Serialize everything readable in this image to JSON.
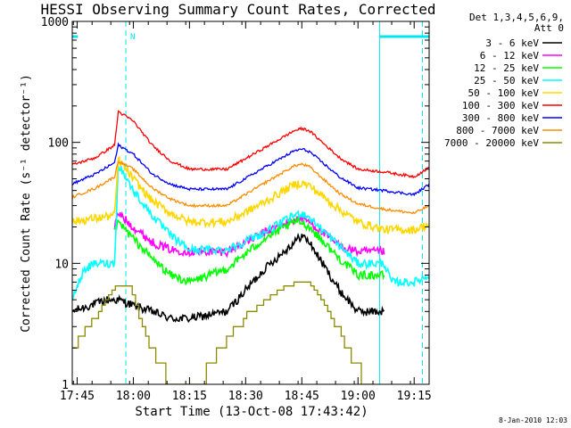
{
  "chart_data": {
    "type": "line",
    "title": "HESSI Observing Summary Count Rates, Corrected",
    "xlabel": "Start Time (13-Oct-08 17:43:42)",
    "ylabel": "Corrected Count Rate (s⁻¹ detector⁻¹)",
    "yscale": "log",
    "ylim": [
      1,
      1000
    ],
    "xlim_minutes_after_1745": [
      -1.3,
      94
    ],
    "x_ticks": [
      {
        "label": "17:45",
        "min": 0
      },
      {
        "label": "18:00",
        "min": 15
      },
      {
        "label": "18:15",
        "min": 30
      },
      {
        "label": "18:30",
        "min": 45
      },
      {
        "label": "18:45",
        "min": 60
      },
      {
        "label": "19:00",
        "min": 75
      },
      {
        "label": "19:15",
        "min": 90
      }
    ],
    "y_ticks": [
      {
        "label": "1",
        "value": 1
      },
      {
        "label": "10",
        "value": 10
      },
      {
        "label": "100",
        "value": 100
      },
      {
        "label": "1000",
        "value": 1000
      }
    ],
    "legend_header": [
      "Det 1,3,4,5,6,9,",
      "Att 0"
    ],
    "legend_position": "right",
    "timestamp": "8-Jan-2010 12:03",
    "annotations": {
      "night_label": "N",
      "night_bar_color": "#00e5ee",
      "night_intervals": [
        [
          -1.3,
          0.2
        ],
        [
          80.8,
          94
        ]
      ],
      "saa_dashed_lines": [
        13.0,
        92.2
      ],
      "saa_solid_lines": [
        -1.3,
        80.8
      ]
    },
    "series": [
      {
        "name": "3 - 6 keV",
        "color": "#000000",
        "points": [
          [
            -1.5,
            4
          ],
          [
            8,
            5
          ],
          [
            11,
            5
          ],
          [
            15,
            4.5
          ],
          [
            20,
            4
          ],
          [
            25,
            3.5
          ],
          [
            30,
            3.5
          ],
          [
            40,
            4
          ],
          [
            50,
            9
          ],
          [
            58,
            15
          ],
          [
            60,
            17
          ],
          [
            62,
            15
          ],
          [
            70,
            6
          ],
          [
            75,
            4
          ],
          [
            82,
            4
          ]
        ]
      },
      {
        "name": "6 - 12 keV",
        "color": "#ff00ff",
        "points": [
          [
            10,
            20
          ],
          [
            11,
            26
          ],
          [
            15,
            20
          ],
          [
            20,
            15
          ],
          [
            25,
            13
          ],
          [
            30,
            12.5
          ],
          [
            40,
            12.5
          ],
          [
            50,
            18
          ],
          [
            58,
            23
          ],
          [
            60,
            24
          ],
          [
            62,
            22
          ],
          [
            70,
            14
          ],
          [
            75,
            12.5
          ],
          [
            82,
            12.5
          ]
        ]
      },
      {
        "name": "12 - 25 keV",
        "color": "#00ff00",
        "points": [
          [
            10,
            18
          ],
          [
            11,
            22
          ],
          [
            15,
            16
          ],
          [
            20,
            11
          ],
          [
            25,
            8
          ],
          [
            30,
            7
          ],
          [
            40,
            9
          ],
          [
            50,
            16
          ],
          [
            58,
            22
          ],
          [
            60,
            22
          ],
          [
            62,
            20
          ],
          [
            70,
            11
          ],
          [
            75,
            8
          ],
          [
            82,
            8
          ]
        ]
      },
      {
        "name": "25 - 50 keV",
        "color": "#00ffff",
        "points": [
          [
            -1.5,
            5
          ],
          [
            2,
            9
          ],
          [
            5,
            10
          ],
          [
            10,
            10
          ],
          [
            11,
            66
          ],
          [
            15,
            40
          ],
          [
            20,
            25
          ],
          [
            25,
            17
          ],
          [
            30,
            13
          ],
          [
            40,
            13
          ],
          [
            50,
            18
          ],
          [
            58,
            25
          ],
          [
            60,
            26
          ],
          [
            62,
            24
          ],
          [
            70,
            14
          ],
          [
            75,
            10
          ],
          [
            82,
            10
          ],
          [
            84,
            7
          ],
          [
            90,
            7
          ],
          [
            94,
            8
          ]
        ]
      },
      {
        "name": "50 - 100 keV",
        "color": "#ffd700",
        "points": [
          [
            -1.5,
            22
          ],
          [
            10,
            25
          ],
          [
            11,
            72
          ],
          [
            15,
            50
          ],
          [
            20,
            33
          ],
          [
            25,
            26
          ],
          [
            30,
            22
          ],
          [
            40,
            22
          ],
          [
            50,
            32
          ],
          [
            58,
            45
          ],
          [
            60,
            46
          ],
          [
            62,
            44
          ],
          [
            70,
            28
          ],
          [
            75,
            22
          ],
          [
            82,
            19
          ],
          [
            90,
            19
          ],
          [
            94,
            21
          ]
        ]
      },
      {
        "name": "100 - 300 keV",
        "color": "#ff0000",
        "points": [
          [
            -1.5,
            65
          ],
          [
            5,
            75
          ],
          [
            10,
            95
          ],
          [
            11,
            180
          ],
          [
            15,
            150
          ],
          [
            20,
            95
          ],
          [
            25,
            70
          ],
          [
            30,
            60
          ],
          [
            40,
            60
          ],
          [
            50,
            90
          ],
          [
            58,
            125
          ],
          [
            60,
            130
          ],
          [
            62,
            125
          ],
          [
            70,
            75
          ],
          [
            75,
            60
          ],
          [
            82,
            57
          ],
          [
            90,
            52
          ],
          [
            94,
            62
          ]
        ]
      },
      {
        "name": "300 - 800 keV",
        "color": "#0000ff",
        "points": [
          [
            -1.5,
            45
          ],
          [
            5,
            55
          ],
          [
            10,
            68
          ],
          [
            11,
            95
          ],
          [
            15,
            80
          ],
          [
            20,
            55
          ],
          [
            25,
            45
          ],
          [
            30,
            41
          ],
          [
            40,
            41
          ],
          [
            50,
            62
          ],
          [
            58,
            85
          ],
          [
            60,
            88
          ],
          [
            62,
            84
          ],
          [
            70,
            52
          ],
          [
            75,
            42
          ],
          [
            82,
            40
          ],
          [
            90,
            37
          ],
          [
            94,
            45
          ]
        ]
      },
      {
        "name": "800 - 7000 keV",
        "color": "#ff8c00",
        "points": [
          [
            -1.5,
            35
          ],
          [
            5,
            42
          ],
          [
            10,
            52
          ],
          [
            11,
            70
          ],
          [
            15,
            60
          ],
          [
            20,
            42
          ],
          [
            25,
            34
          ],
          [
            30,
            30
          ],
          [
            40,
            30
          ],
          [
            50,
            46
          ],
          [
            58,
            64
          ],
          [
            60,
            66
          ],
          [
            62,
            63
          ],
          [
            70,
            38
          ],
          [
            75,
            31
          ],
          [
            82,
            28
          ],
          [
            90,
            26
          ],
          [
            94,
            30
          ]
        ]
      },
      {
        "name": "7000 - 20000 keV",
        "color": "#8b8b00",
        "points": [
          [
            -1.5,
            2
          ],
          [
            3,
            3
          ],
          [
            8,
            5
          ],
          [
            10,
            6.5
          ],
          [
            14,
            6.5
          ],
          [
            15,
            5
          ],
          [
            18,
            2.5
          ],
          [
            22,
            1.5
          ],
          [
            25,
            1
          ],
          [
            32,
            1
          ],
          [
            38,
            2
          ],
          [
            46,
            4
          ],
          [
            52,
            5.5
          ],
          [
            58,
            7
          ],
          [
            62,
            7
          ],
          [
            66,
            4.5
          ],
          [
            72,
            2
          ],
          [
            76,
            1.2
          ],
          [
            80,
            1
          ]
        ]
      }
    ]
  }
}
